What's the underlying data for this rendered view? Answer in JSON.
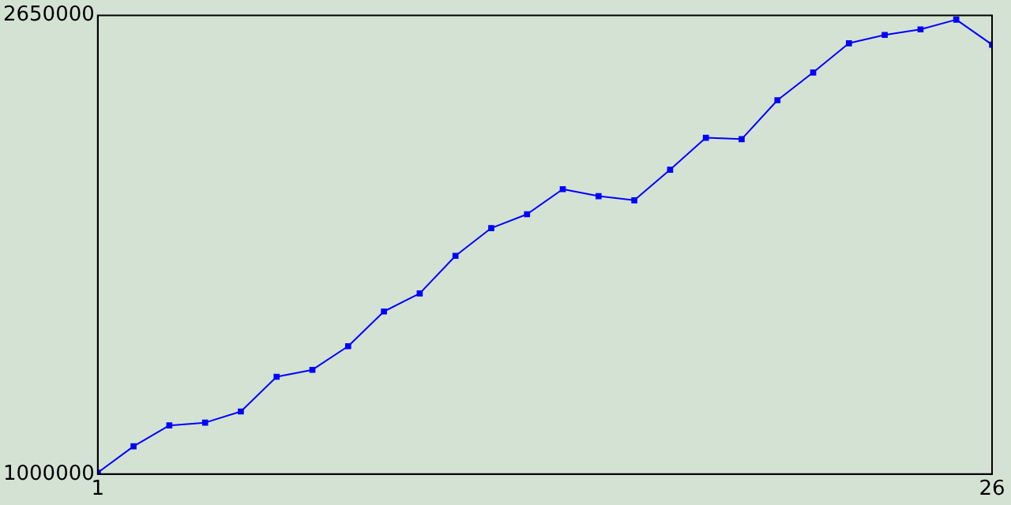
{
  "chart_data": {
    "type": "line",
    "x": [
      1,
      2,
      3,
      4,
      5,
      6,
      7,
      8,
      9,
      10,
      11,
      12,
      13,
      14,
      15,
      16,
      17,
      18,
      19,
      20,
      21,
      22,
      23,
      24,
      25,
      26
    ],
    "series": [
      {
        "color": "#0000ff",
        "values": [
          1005000,
          1100000,
          1175000,
          1185000,
          1225000,
          1350000,
          1375000,
          1460000,
          1585000,
          1650000,
          1785000,
          1885000,
          1935000,
          2025000,
          2000000,
          1985000,
          2095000,
          2210000,
          2205000,
          2345000,
          2445000,
          2550000,
          2580000,
          2600000,
          2635000,
          2545000
        ]
      }
    ],
    "xlim": [
      1,
      26
    ],
    "xticks": [
      1,
      26
    ],
    "ylim": [
      1000000,
      2650000
    ],
    "yticks": [
      1000000,
      2650000
    ],
    "grid": false,
    "legend": false,
    "marker": "square",
    "line_style": "solid"
  }
}
